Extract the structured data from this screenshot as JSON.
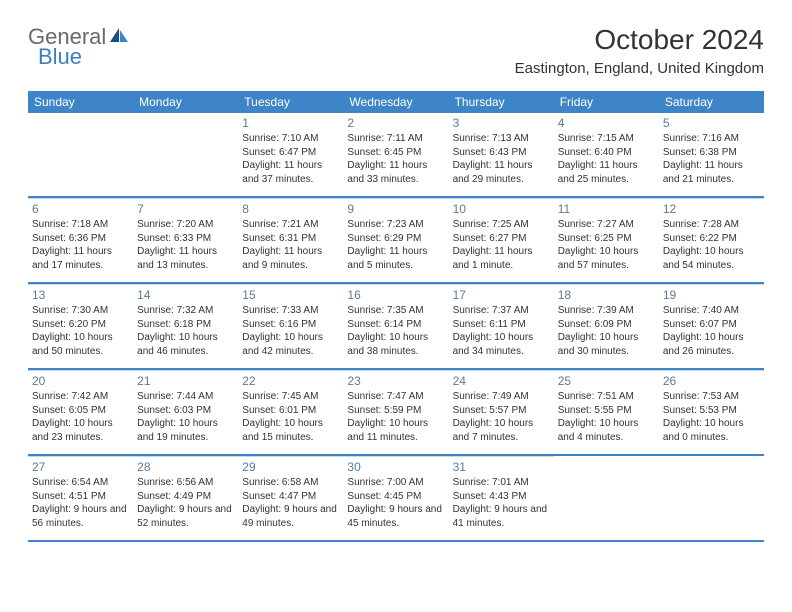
{
  "logo": {
    "text1": "General",
    "text2": "Blue"
  },
  "title": "October 2024",
  "location": "Eastington, England, United Kingdom",
  "colors": {
    "header_bg": "#3d85c6",
    "header_text": "#ffffff",
    "daynum": "#5a7a9a",
    "border": "#3d85c6",
    "grid_line": "#c9d8e8",
    "body_text": "#333333",
    "logo_gray": "#6a6a6a",
    "logo_blue": "#3d7fc1",
    "page_bg": "#ffffff"
  },
  "day_headers": [
    "Sunday",
    "Monday",
    "Tuesday",
    "Wednesday",
    "Thursday",
    "Friday",
    "Saturday"
  ],
  "weeks": [
    [
      null,
      null,
      {
        "num": "1",
        "sunrise": "Sunrise: 7:10 AM",
        "sunset": "Sunset: 6:47 PM",
        "daylight": "Daylight: 11 hours and 37 minutes."
      },
      {
        "num": "2",
        "sunrise": "Sunrise: 7:11 AM",
        "sunset": "Sunset: 6:45 PM",
        "daylight": "Daylight: 11 hours and 33 minutes."
      },
      {
        "num": "3",
        "sunrise": "Sunrise: 7:13 AM",
        "sunset": "Sunset: 6:43 PM",
        "daylight": "Daylight: 11 hours and 29 minutes."
      },
      {
        "num": "4",
        "sunrise": "Sunrise: 7:15 AM",
        "sunset": "Sunset: 6:40 PM",
        "daylight": "Daylight: 11 hours and 25 minutes."
      },
      {
        "num": "5",
        "sunrise": "Sunrise: 7:16 AM",
        "sunset": "Sunset: 6:38 PM",
        "daylight": "Daylight: 11 hours and 21 minutes."
      }
    ],
    [
      {
        "num": "6",
        "sunrise": "Sunrise: 7:18 AM",
        "sunset": "Sunset: 6:36 PM",
        "daylight": "Daylight: 11 hours and 17 minutes."
      },
      {
        "num": "7",
        "sunrise": "Sunrise: 7:20 AM",
        "sunset": "Sunset: 6:33 PM",
        "daylight": "Daylight: 11 hours and 13 minutes."
      },
      {
        "num": "8",
        "sunrise": "Sunrise: 7:21 AM",
        "sunset": "Sunset: 6:31 PM",
        "daylight": "Daylight: 11 hours and 9 minutes."
      },
      {
        "num": "9",
        "sunrise": "Sunrise: 7:23 AM",
        "sunset": "Sunset: 6:29 PM",
        "daylight": "Daylight: 11 hours and 5 minutes."
      },
      {
        "num": "10",
        "sunrise": "Sunrise: 7:25 AM",
        "sunset": "Sunset: 6:27 PM",
        "daylight": "Daylight: 11 hours and 1 minute."
      },
      {
        "num": "11",
        "sunrise": "Sunrise: 7:27 AM",
        "sunset": "Sunset: 6:25 PM",
        "daylight": "Daylight: 10 hours and 57 minutes."
      },
      {
        "num": "12",
        "sunrise": "Sunrise: 7:28 AM",
        "sunset": "Sunset: 6:22 PM",
        "daylight": "Daylight: 10 hours and 54 minutes."
      }
    ],
    [
      {
        "num": "13",
        "sunrise": "Sunrise: 7:30 AM",
        "sunset": "Sunset: 6:20 PM",
        "daylight": "Daylight: 10 hours and 50 minutes."
      },
      {
        "num": "14",
        "sunrise": "Sunrise: 7:32 AM",
        "sunset": "Sunset: 6:18 PM",
        "daylight": "Daylight: 10 hours and 46 minutes."
      },
      {
        "num": "15",
        "sunrise": "Sunrise: 7:33 AM",
        "sunset": "Sunset: 6:16 PM",
        "daylight": "Daylight: 10 hours and 42 minutes."
      },
      {
        "num": "16",
        "sunrise": "Sunrise: 7:35 AM",
        "sunset": "Sunset: 6:14 PM",
        "daylight": "Daylight: 10 hours and 38 minutes."
      },
      {
        "num": "17",
        "sunrise": "Sunrise: 7:37 AM",
        "sunset": "Sunset: 6:11 PM",
        "daylight": "Daylight: 10 hours and 34 minutes."
      },
      {
        "num": "18",
        "sunrise": "Sunrise: 7:39 AM",
        "sunset": "Sunset: 6:09 PM",
        "daylight": "Daylight: 10 hours and 30 minutes."
      },
      {
        "num": "19",
        "sunrise": "Sunrise: 7:40 AM",
        "sunset": "Sunset: 6:07 PM",
        "daylight": "Daylight: 10 hours and 26 minutes."
      }
    ],
    [
      {
        "num": "20",
        "sunrise": "Sunrise: 7:42 AM",
        "sunset": "Sunset: 6:05 PM",
        "daylight": "Daylight: 10 hours and 23 minutes."
      },
      {
        "num": "21",
        "sunrise": "Sunrise: 7:44 AM",
        "sunset": "Sunset: 6:03 PM",
        "daylight": "Daylight: 10 hours and 19 minutes."
      },
      {
        "num": "22",
        "sunrise": "Sunrise: 7:45 AM",
        "sunset": "Sunset: 6:01 PM",
        "daylight": "Daylight: 10 hours and 15 minutes."
      },
      {
        "num": "23",
        "sunrise": "Sunrise: 7:47 AM",
        "sunset": "Sunset: 5:59 PM",
        "daylight": "Daylight: 10 hours and 11 minutes."
      },
      {
        "num": "24",
        "sunrise": "Sunrise: 7:49 AM",
        "sunset": "Sunset: 5:57 PM",
        "daylight": "Daylight: 10 hours and 7 minutes."
      },
      {
        "num": "25",
        "sunrise": "Sunrise: 7:51 AM",
        "sunset": "Sunset: 5:55 PM",
        "daylight": "Daylight: 10 hours and 4 minutes."
      },
      {
        "num": "26",
        "sunrise": "Sunrise: 7:53 AM",
        "sunset": "Sunset: 5:53 PM",
        "daylight": "Daylight: 10 hours and 0 minutes."
      }
    ],
    [
      {
        "num": "27",
        "sunrise": "Sunrise: 6:54 AM",
        "sunset": "Sunset: 4:51 PM",
        "daylight": "Daylight: 9 hours and 56 minutes."
      },
      {
        "num": "28",
        "sunrise": "Sunrise: 6:56 AM",
        "sunset": "Sunset: 4:49 PM",
        "daylight": "Daylight: 9 hours and 52 minutes."
      },
      {
        "num": "29",
        "sunrise": "Sunrise: 6:58 AM",
        "sunset": "Sunset: 4:47 PM",
        "daylight": "Daylight: 9 hours and 49 minutes."
      },
      {
        "num": "30",
        "sunrise": "Sunrise: 7:00 AM",
        "sunset": "Sunset: 4:45 PM",
        "daylight": "Daylight: 9 hours and 45 minutes."
      },
      {
        "num": "31",
        "sunrise": "Sunrise: 7:01 AM",
        "sunset": "Sunset: 4:43 PM",
        "daylight": "Daylight: 9 hours and 41 minutes."
      },
      null,
      null
    ]
  ]
}
